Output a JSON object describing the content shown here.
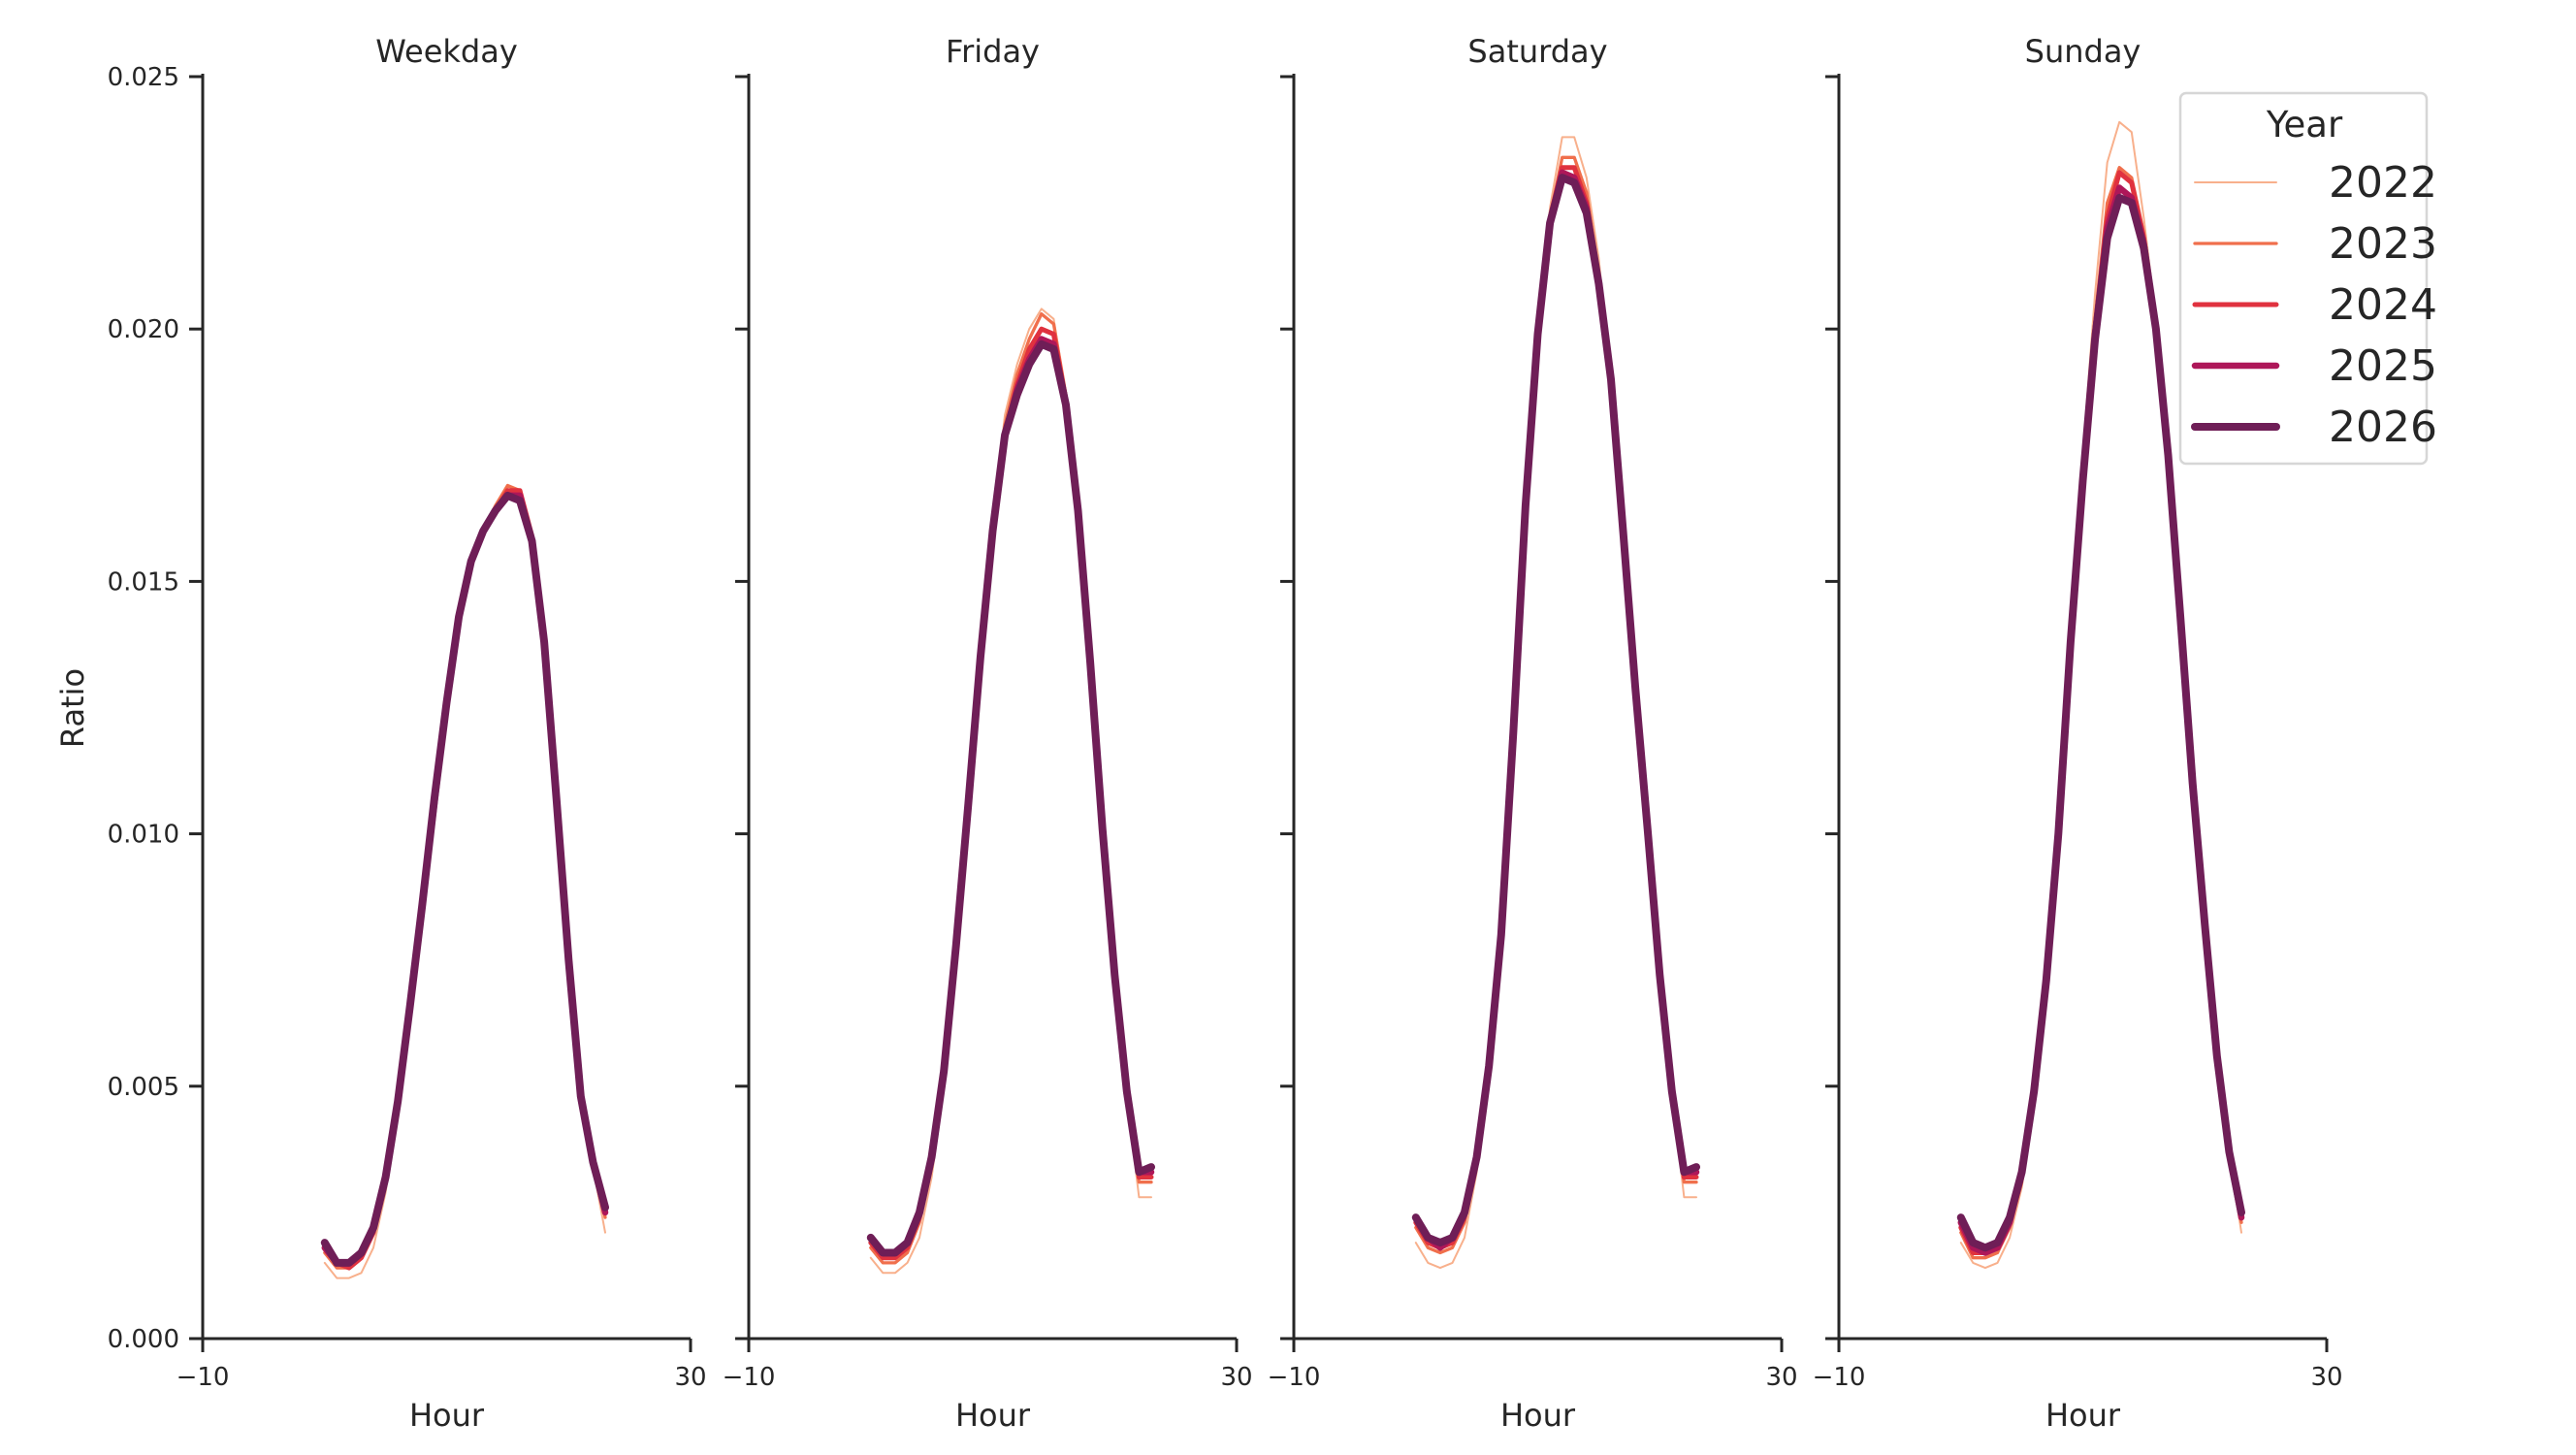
{
  "chart_data": {
    "type": "line",
    "ylabel": "Ratio",
    "xlabel": "Hour",
    "xlim": [
      -10,
      30
    ],
    "ylim": [
      0,
      0.025
    ],
    "xticks": [
      -10,
      30
    ],
    "xtick_labels": [
      "−10",
      "30"
    ],
    "yticks": [
      0.0,
      0.005,
      0.01,
      0.015,
      0.02,
      0.025
    ],
    "ytick_labels": [
      "0.000",
      "0.005",
      "0.010",
      "0.015",
      "0.020",
      "0.025"
    ],
    "grid": false,
    "x": [
      0,
      1,
      2,
      3,
      4,
      5,
      6,
      7,
      8,
      9,
      10,
      11,
      12,
      13,
      14,
      15,
      16,
      17,
      18,
      19,
      20,
      21,
      22,
      23
    ],
    "legend": {
      "title": "Year",
      "placement": "top-right",
      "entries": [
        "2022",
        "2023",
        "2024",
        "2025",
        "2026"
      ]
    },
    "series_style": [
      {
        "name": "2022",
        "color": "#f8b08c"
      },
      {
        "name": "2023",
        "color": "#f06f4c"
      },
      {
        "name": "2024",
        "color": "#e0323f"
      },
      {
        "name": "2025",
        "color": "#ae1759"
      },
      {
        "name": "2026",
        "color": "#6f1e57"
      }
    ],
    "panels": [
      {
        "title": "Weekday",
        "series": [
          {
            "name": "2022",
            "values": [
              0.0015,
              0.0012,
              0.0012,
              0.0013,
              0.0018,
              0.0029,
              0.0046,
              0.0065,
              0.0086,
              0.0107,
              0.0127,
              0.0144,
              0.0155,
              0.0161,
              0.0165,
              0.0169,
              0.0168,
              0.0159,
              0.0139,
              0.0107,
              0.0075,
              0.0048,
              0.0034,
              0.0021
            ]
          },
          {
            "name": "2023",
            "values": [
              0.0017,
              0.0014,
              0.0014,
              0.0016,
              0.0021,
              0.0031,
              0.0047,
              0.0066,
              0.0086,
              0.0107,
              0.0126,
              0.0143,
              0.0154,
              0.016,
              0.0165,
              0.0169,
              0.0168,
              0.0159,
              0.0139,
              0.0107,
              0.0075,
              0.0048,
              0.0035,
              0.0024
            ]
          },
          {
            "name": "2024",
            "values": [
              0.0018,
              0.0015,
              0.0014,
              0.0016,
              0.0021,
              0.0032,
              0.0047,
              0.0066,
              0.0086,
              0.0106,
              0.0126,
              0.0143,
              0.0154,
              0.016,
              0.0164,
              0.0168,
              0.0168,
              0.0159,
              0.0139,
              0.0107,
              0.0075,
              0.0048,
              0.0035,
              0.0025
            ]
          },
          {
            "name": "2025",
            "values": [
              0.0018,
              0.0015,
              0.0015,
              0.0017,
              0.0022,
              0.0032,
              0.0047,
              0.0066,
              0.0086,
              0.0106,
              0.0126,
              0.0143,
              0.0154,
              0.016,
              0.0164,
              0.0167,
              0.0167,
              0.0158,
              0.0138,
              0.0107,
              0.0075,
              0.0048,
              0.0035,
              0.0025
            ]
          },
          {
            "name": "2026",
            "values": [
              0.0019,
              0.0015,
              0.0015,
              0.0017,
              0.0022,
              0.0032,
              0.0047,
              0.0066,
              0.0086,
              0.0107,
              0.0126,
              0.0143,
              0.0154,
              0.016,
              0.0164,
              0.0167,
              0.0166,
              0.0158,
              0.0138,
              0.0107,
              0.0075,
              0.0048,
              0.0035,
              0.0026
            ]
          }
        ]
      },
      {
        "title": "Friday",
        "series": [
          {
            "name": "2022",
            "values": [
              0.0016,
              0.0013,
              0.0013,
              0.0015,
              0.002,
              0.0032,
              0.005,
              0.0076,
              0.0105,
              0.0135,
              0.0162,
              0.0183,
              0.0193,
              0.02,
              0.0204,
              0.0202,
              0.0187,
              0.0164,
              0.0133,
              0.01,
              0.0071,
              0.0048,
              0.0028,
              0.0028
            ]
          },
          {
            "name": "2023",
            "values": [
              0.0018,
              0.0015,
              0.0015,
              0.0017,
              0.0023,
              0.0034,
              0.0052,
              0.0077,
              0.0106,
              0.0135,
              0.0161,
              0.0181,
              0.0191,
              0.0198,
              0.0203,
              0.0201,
              0.0187,
              0.0164,
              0.0134,
              0.0101,
              0.0072,
              0.0049,
              0.0031,
              0.0031
            ]
          },
          {
            "name": "2024",
            "values": [
              0.0019,
              0.0016,
              0.0016,
              0.0018,
              0.0024,
              0.0035,
              0.0053,
              0.0078,
              0.0106,
              0.0135,
              0.016,
              0.0179,
              0.0189,
              0.0196,
              0.02,
              0.0199,
              0.0186,
              0.0164,
              0.0134,
              0.0101,
              0.0072,
              0.0049,
              0.0032,
              0.0032
            ]
          },
          {
            "name": "2025",
            "values": [
              0.002,
              0.0017,
              0.0017,
              0.0019,
              0.0025,
              0.0036,
              0.0053,
              0.0078,
              0.0106,
              0.0135,
              0.016,
              0.0179,
              0.0188,
              0.0194,
              0.0198,
              0.0197,
              0.0185,
              0.0164,
              0.0134,
              0.0101,
              0.0072,
              0.0049,
              0.0033,
              0.0033
            ]
          },
          {
            "name": "2026",
            "values": [
              0.002,
              0.0017,
              0.0017,
              0.0019,
              0.0025,
              0.0036,
              0.0053,
              0.0078,
              0.0106,
              0.0135,
              0.016,
              0.0179,
              0.0187,
              0.0193,
              0.0197,
              0.0196,
              0.0185,
              0.0164,
              0.0134,
              0.0101,
              0.0072,
              0.0049,
              0.0033,
              0.0034
            ]
          }
        ]
      },
      {
        "title": "Saturday",
        "series": [
          {
            "name": "2022",
            "values": [
              0.0019,
              0.0015,
              0.0014,
              0.0015,
              0.002,
              0.0033,
              0.0052,
              0.0079,
              0.012,
              0.0165,
              0.0199,
              0.0224,
              0.0238,
              0.0238,
              0.023,
              0.0214,
              0.019,
              0.016,
              0.0128,
              0.01,
              0.0072,
              0.0049,
              0.0028,
              0.0028
            ]
          },
          {
            "name": "2023",
            "values": [
              0.0022,
              0.0018,
              0.0017,
              0.0018,
              0.0023,
              0.0035,
              0.0054,
              0.008,
              0.012,
              0.0165,
              0.0199,
              0.0222,
              0.0234,
              0.0234,
              0.0227,
              0.0211,
              0.019,
              0.016,
              0.0129,
              0.0101,
              0.0072,
              0.0049,
              0.0031,
              0.0031
            ]
          },
          {
            "name": "2024",
            "values": [
              0.0023,
              0.0019,
              0.0018,
              0.0019,
              0.0024,
              0.0036,
              0.0054,
              0.008,
              0.012,
              0.0165,
              0.0199,
              0.0222,
              0.0232,
              0.0232,
              0.0225,
              0.021,
              0.019,
              0.016,
              0.0129,
              0.0101,
              0.0072,
              0.0049,
              0.0032,
              0.0032
            ]
          },
          {
            "name": "2025",
            "values": [
              0.0024,
              0.002,
              0.0018,
              0.002,
              0.0025,
              0.0036,
              0.0054,
              0.008,
              0.012,
              0.0165,
              0.0199,
              0.0221,
              0.0231,
              0.023,
              0.0224,
              0.0209,
              0.019,
              0.016,
              0.0129,
              0.0101,
              0.0072,
              0.0049,
              0.0033,
              0.0033
            ]
          },
          {
            "name": "2026",
            "values": [
              0.0024,
              0.002,
              0.0019,
              0.002,
              0.0025,
              0.0036,
              0.0054,
              0.008,
              0.012,
              0.0165,
              0.0199,
              0.0221,
              0.023,
              0.0229,
              0.0223,
              0.0209,
              0.019,
              0.016,
              0.0129,
              0.0101,
              0.0072,
              0.0049,
              0.0033,
              0.0034
            ]
          }
        ]
      },
      {
        "title": "Sunday",
        "series": [
          {
            "name": "2022",
            "values": [
              0.0019,
              0.0015,
              0.0014,
              0.0015,
              0.002,
              0.003,
              0.0047,
              0.007,
              0.01,
              0.014,
              0.0175,
              0.0207,
              0.0233,
              0.0241,
              0.0239,
              0.0222,
              0.0202,
              0.0176,
              0.0143,
              0.011,
              0.0082,
              0.0056,
              0.0037,
              0.0021
            ]
          },
          {
            "name": "2023",
            "values": [
              0.0021,
              0.0016,
              0.0016,
              0.0017,
              0.0022,
              0.0031,
              0.0048,
              0.0071,
              0.01,
              0.0139,
              0.0172,
              0.0202,
              0.0225,
              0.0232,
              0.023,
              0.0219,
              0.0201,
              0.0175,
              0.0143,
              0.011,
              0.0082,
              0.0056,
              0.0037,
              0.0023
            ]
          },
          {
            "name": "2024",
            "values": [
              0.0022,
              0.0017,
              0.0017,
              0.0018,
              0.0023,
              0.0032,
              0.0048,
              0.0071,
              0.01,
              0.0138,
              0.0171,
              0.02,
              0.0222,
              0.0231,
              0.0229,
              0.0218,
              0.02,
              0.0175,
              0.0143,
              0.011,
              0.0082,
              0.0056,
              0.0037,
              0.0024
            ]
          },
          {
            "name": "2025",
            "values": [
              0.0023,
              0.0018,
              0.0017,
              0.0018,
              0.0023,
              0.0033,
              0.0049,
              0.0071,
              0.01,
              0.0138,
              0.017,
              0.0199,
              0.022,
              0.0228,
              0.0226,
              0.0217,
              0.02,
              0.0175,
              0.0143,
              0.011,
              0.0082,
              0.0056,
              0.0037,
              0.0024
            ]
          },
          {
            "name": "2026",
            "values": [
              0.0024,
              0.0019,
              0.0018,
              0.0019,
              0.0024,
              0.0033,
              0.0049,
              0.0071,
              0.01,
              0.0138,
              0.017,
              0.0198,
              0.0218,
              0.0226,
              0.0225,
              0.0216,
              0.02,
              0.0175,
              0.0143,
              0.011,
              0.0082,
              0.0056,
              0.0037,
              0.0025
            ]
          }
        ]
      }
    ]
  }
}
